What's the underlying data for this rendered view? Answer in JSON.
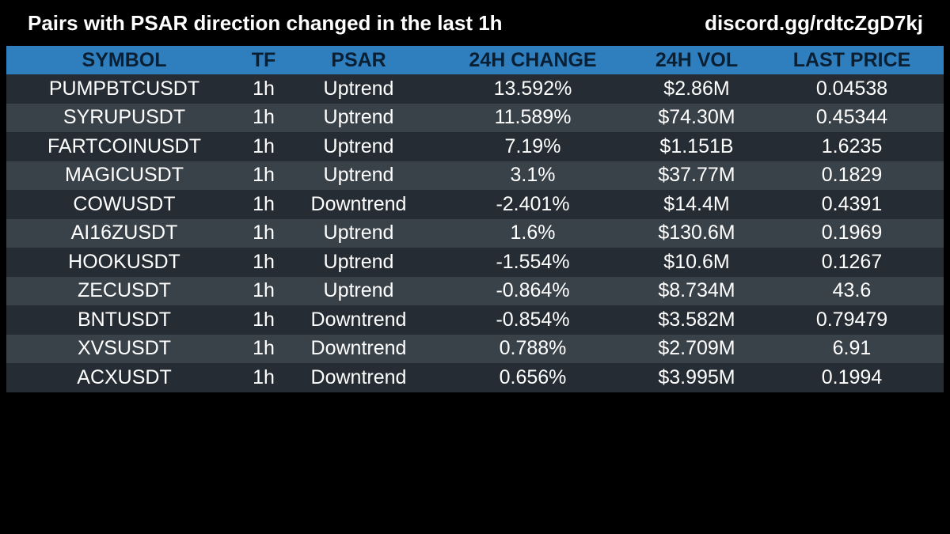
{
  "header": {
    "title": "Pairs with PSAR direction changed in the last 1h",
    "invite": "discord.gg/rdtcZgD7kj"
  },
  "table": {
    "columns": [
      "SYMBOL",
      "TF",
      "PSAR",
      "24H CHANGE",
      "24H VOL",
      "LAST PRICE"
    ],
    "rows": [
      {
        "symbol": "PUMPBTCUSDT",
        "tf": "1h",
        "psar": "Uptrend",
        "change": "13.592%",
        "vol": "$2.86M",
        "price": "0.04538"
      },
      {
        "symbol": "SYRUPUSDT",
        "tf": "1h",
        "psar": "Uptrend",
        "change": "11.589%",
        "vol": "$74.30M",
        "price": "0.45344"
      },
      {
        "symbol": "FARTCOINUSDT",
        "tf": "1h",
        "psar": "Uptrend",
        "change": "7.19%",
        "vol": "$1.151B",
        "price": "1.6235"
      },
      {
        "symbol": "MAGICUSDT",
        "tf": "1h",
        "psar": "Uptrend",
        "change": "3.1%",
        "vol": "$37.77M",
        "price": "0.1829"
      },
      {
        "symbol": "COWUSDT",
        "tf": "1h",
        "psar": "Downtrend",
        "change": "-2.401%",
        "vol": "$14.4M",
        "price": "0.4391"
      },
      {
        "symbol": "AI16ZUSDT",
        "tf": "1h",
        "psar": "Uptrend",
        "change": "1.6%",
        "vol": "$130.6M",
        "price": "0.1969"
      },
      {
        "symbol": "HOOKUSDT",
        "tf": "1h",
        "psar": "Uptrend",
        "change": "-1.554%",
        "vol": "$10.6M",
        "price": "0.1267"
      },
      {
        "symbol": "ZECUSDT",
        "tf": "1h",
        "psar": "Uptrend",
        "change": "-0.864%",
        "vol": "$8.734M",
        "price": "43.6"
      },
      {
        "symbol": "BNTUSDT",
        "tf": "1h",
        "psar": "Downtrend",
        "change": "-0.854%",
        "vol": "$3.582M",
        "price": "0.79479"
      },
      {
        "symbol": "XVSUSDT",
        "tf": "1h",
        "psar": "Downtrend",
        "change": "0.788%",
        "vol": "$2.709M",
        "price": "6.91"
      },
      {
        "symbol": "ACXUSDT",
        "tf": "1h",
        "psar": "Downtrend",
        "change": "0.656%",
        "vol": "$3.995M",
        "price": "0.1994"
      }
    ]
  },
  "colors": {
    "background": "#000000",
    "header_row": "#2f7fbf",
    "header_text": "#0b1f33",
    "row_dark": "#252c33",
    "row_light": "#3a4249",
    "text": "#ffffff"
  }
}
